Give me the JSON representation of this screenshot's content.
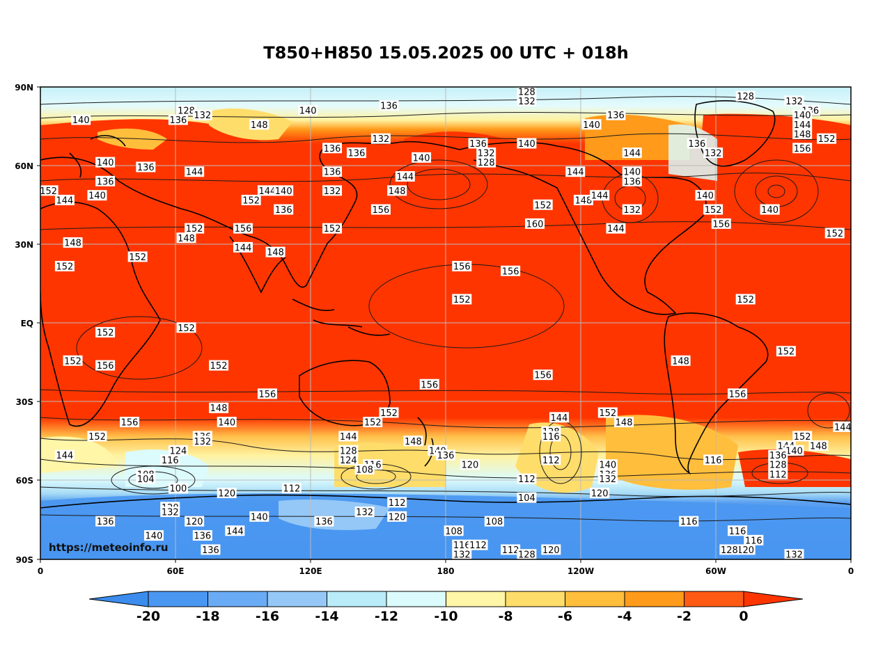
{
  "title": "T850+H850 15.05.2025 00 UTC + 018h",
  "watermark": "https://meteoinfo.ru",
  "lat_labels": [
    "90N",
    "60N",
    "30N",
    "EQ",
    "30S",
    "60S",
    "90S"
  ],
  "lon_labels": [
    "0",
    "60E",
    "120E",
    "180",
    "120W",
    "60W",
    "0"
  ],
  "colorbar": {
    "ticks": [
      "-20",
      "-18",
      "-16",
      "-14",
      "-12",
      "-10",
      "-8",
      "-6",
      "-4",
      "-2",
      "0"
    ],
    "colors": [
      "#3b8ced",
      "#4a97f1",
      "#6aabf5",
      "#95c8f7",
      "#b9ebf8",
      "#dcfbfd",
      "#fff6a8",
      "#ffdd6a",
      "#ffbe3c",
      "#ff9a1a",
      "#ff5a14",
      "#ff3500"
    ]
  },
  "colors": {
    "warm": "#ff3500",
    "orange": "#ff8a1a",
    "yellow": "#ffe27a",
    "light": "#fff9c6",
    "cyan": "#c5f0f8",
    "blue_light": "#8fc4f4",
    "blue": "#4592ec",
    "contour": "#1a1a1a",
    "grid": "#bbbbbb"
  },
  "height_labels": [
    {
      "t": "128",
      "lon": 0.6,
      "lat": 0.99
    },
    {
      "t": "128",
      "lon": 0.18,
      "lat": 0.95
    },
    {
      "t": "132",
      "lon": 0.2,
      "lat": 0.94
    },
    {
      "t": "136",
      "lon": 0.17,
      "lat": 0.93
    },
    {
      "t": "140",
      "lon": 0.05,
      "lat": 0.93
    },
    {
      "t": "140",
      "lon": 0.33,
      "lat": 0.95
    },
    {
      "t": "136",
      "lon": 0.43,
      "lat": 0.96
    },
    {
      "t": "132",
      "lon": 0.6,
      "lat": 0.97
    },
    {
      "t": "128",
      "lon": 0.87,
      "lat": 0.98
    },
    {
      "t": "132",
      "lon": 0.93,
      "lat": 0.97
    },
    {
      "t": "136",
      "lon": 0.95,
      "lat": 0.95
    },
    {
      "t": "136",
      "lon": 0.71,
      "lat": 0.94
    },
    {
      "t": "140",
      "lon": 0.68,
      "lat": 0.92
    },
    {
      "t": "148",
      "lon": 0.27,
      "lat": 0.92
    },
    {
      "t": "140",
      "lon": 0.94,
      "lat": 0.94
    },
    {
      "t": "144",
      "lon": 0.94,
      "lat": 0.92
    },
    {
      "t": "148",
      "lon": 0.94,
      "lat": 0.9
    },
    {
      "t": "152",
      "lon": 0.97,
      "lat": 0.89
    },
    {
      "t": "156",
      "lon": 0.94,
      "lat": 0.87
    },
    {
      "t": "136",
      "lon": 0.36,
      "lat": 0.87
    },
    {
      "t": "136",
      "lon": 0.39,
      "lat": 0.86
    },
    {
      "t": "132",
      "lon": 0.42,
      "lat": 0.89
    },
    {
      "t": "136",
      "lon": 0.54,
      "lat": 0.88
    },
    {
      "t": "132",
      "lon": 0.55,
      "lat": 0.86
    },
    {
      "t": "128",
      "lon": 0.55,
      "lat": 0.84
    },
    {
      "t": "140",
      "lon": 0.47,
      "lat": 0.85
    },
    {
      "t": "140",
      "lon": 0.6,
      "lat": 0.88
    },
    {
      "t": "144",
      "lon": 0.73,
      "lat": 0.86
    },
    {
      "t": "136",
      "lon": 0.81,
      "lat": 0.88
    },
    {
      "t": "132",
      "lon": 0.83,
      "lat": 0.86
    },
    {
      "t": "140",
      "lon": 0.08,
      "lat": 0.84
    },
    {
      "t": "136",
      "lon": 0.13,
      "lat": 0.83
    },
    {
      "t": "144",
      "lon": 0.19,
      "lat": 0.82
    },
    {
      "t": "136",
      "lon": 0.36,
      "lat": 0.82
    },
    {
      "t": "132",
      "lon": 0.36,
      "lat": 0.78
    },
    {
      "t": "144",
      "lon": 0.45,
      "lat": 0.81
    },
    {
      "t": "148",
      "lon": 0.44,
      "lat": 0.78
    },
    {
      "t": "144",
      "lon": 0.66,
      "lat": 0.82
    },
    {
      "t": "140",
      "lon": 0.73,
      "lat": 0.82
    },
    {
      "t": "136",
      "lon": 0.73,
      "lat": 0.8
    },
    {
      "t": "152",
      "lon": 0.01,
      "lat": 0.78
    },
    {
      "t": "136",
      "lon": 0.08,
      "lat": 0.8
    },
    {
      "t": "140",
      "lon": 0.07,
      "lat": 0.77
    },
    {
      "t": "144",
      "lon": 0.03,
      "lat": 0.76
    },
    {
      "t": "144",
      "lon": 0.28,
      "lat": 0.78
    },
    {
      "t": "140",
      "lon": 0.3,
      "lat": 0.78
    },
    {
      "t": "152",
      "lon": 0.26,
      "lat": 0.76
    },
    {
      "t": "136",
      "lon": 0.3,
      "lat": 0.74
    },
    {
      "t": "156",
      "lon": 0.42,
      "lat": 0.74
    },
    {
      "t": "148",
      "lon": 0.67,
      "lat": 0.76
    },
    {
      "t": "144",
      "lon": 0.69,
      "lat": 0.77
    },
    {
      "t": "152",
      "lon": 0.62,
      "lat": 0.75
    },
    {
      "t": "132",
      "lon": 0.73,
      "lat": 0.74
    },
    {
      "t": "140",
      "lon": 0.82,
      "lat": 0.77
    },
    {
      "t": "152",
      "lon": 0.83,
      "lat": 0.74
    },
    {
      "t": "140",
      "lon": 0.9,
      "lat": 0.74
    },
    {
      "t": "156",
      "lon": 0.84,
      "lat": 0.71
    },
    {
      "t": "160",
      "lon": 0.61,
      "lat": 0.71
    },
    {
      "t": "144",
      "lon": 0.71,
      "lat": 0.7
    },
    {
      "t": "152",
      "lon": 0.98,
      "lat": 0.69
    },
    {
      "t": "152",
      "lon": 0.19,
      "lat": 0.7
    },
    {
      "t": "148",
      "lon": 0.18,
      "lat": 0.68
    },
    {
      "t": "156",
      "lon": 0.25,
      "lat": 0.7
    },
    {
      "t": "144",
      "lon": 0.25,
      "lat": 0.66
    },
    {
      "t": "148",
      "lon": 0.29,
      "lat": 0.65
    },
    {
      "t": "152",
      "lon": 0.36,
      "lat": 0.7
    },
    {
      "t": "148",
      "lon": 0.04,
      "lat": 0.67
    },
    {
      "t": "152",
      "lon": 0.03,
      "lat": 0.62
    },
    {
      "t": "152",
      "lon": 0.12,
      "lat": 0.64
    },
    {
      "t": "156",
      "lon": 0.52,
      "lat": 0.62
    },
    {
      "t": "156",
      "lon": 0.58,
      "lat": 0.61
    },
    {
      "t": "152",
      "lon": 0.52,
      "lat": 0.55
    },
    {
      "t": "152",
      "lon": 0.87,
      "lat": 0.55
    },
    {
      "t": "152",
      "lon": 0.08,
      "lat": 0.48
    },
    {
      "t": "152",
      "lon": 0.18,
      "lat": 0.49
    },
    {
      "t": "152",
      "lon": 0.04,
      "lat": 0.42
    },
    {
      "t": "156",
      "lon": 0.08,
      "lat": 0.41
    },
    {
      "t": "152",
      "lon": 0.22,
      "lat": 0.41
    },
    {
      "t": "148",
      "lon": 0.79,
      "lat": 0.42
    },
    {
      "t": "152",
      "lon": 0.92,
      "lat": 0.44
    },
    {
      "t": "156",
      "lon": 0.62,
      "lat": 0.39
    },
    {
      "t": "156",
      "lon": 0.48,
      "lat": 0.37
    },
    {
      "t": "156",
      "lon": 0.28,
      "lat": 0.35
    },
    {
      "t": "156",
      "lon": 0.86,
      "lat": 0.35
    },
    {
      "t": "148",
      "lon": 0.22,
      "lat": 0.32
    },
    {
      "t": "140",
      "lon": 0.23,
      "lat": 0.29
    },
    {
      "t": "152",
      "lon": 0.43,
      "lat": 0.31
    },
    {
      "t": "152",
      "lon": 0.41,
      "lat": 0.29
    },
    {
      "t": "156",
      "lon": 0.11,
      "lat": 0.29
    },
    {
      "t": "152",
      "lon": 0.07,
      "lat": 0.26
    },
    {
      "t": "144",
      "lon": 0.03,
      "lat": 0.22
    },
    {
      "t": "136",
      "lon": 0.2,
      "lat": 0.26
    },
    {
      "t": "132",
      "lon": 0.2,
      "lat": 0.25
    },
    {
      "t": "124",
      "lon": 0.17,
      "lat": 0.23
    },
    {
      "t": "116",
      "lon": 0.16,
      "lat": 0.21
    },
    {
      "t": "108",
      "lon": 0.13,
      "lat": 0.18
    },
    {
      "t": "104",
      "lon": 0.13,
      "lat": 0.17
    },
    {
      "t": "100",
      "lon": 0.17,
      "lat": 0.15
    },
    {
      "t": "144",
      "lon": 0.38,
      "lat": 0.26
    },
    {
      "t": "128",
      "lon": 0.38,
      "lat": 0.23
    },
    {
      "t": "124",
      "lon": 0.38,
      "lat": 0.21
    },
    {
      "t": "116",
      "lon": 0.41,
      "lat": 0.2
    },
    {
      "t": "108",
      "lon": 0.4,
      "lat": 0.19
    },
    {
      "t": "148",
      "lon": 0.46,
      "lat": 0.25
    },
    {
      "t": "140",
      "lon": 0.49,
      "lat": 0.23
    },
    {
      "t": "136",
      "lon": 0.5,
      "lat": 0.22
    },
    {
      "t": "120",
      "lon": 0.53,
      "lat": 0.2
    },
    {
      "t": "144",
      "lon": 0.64,
      "lat": 0.3
    },
    {
      "t": "128",
      "lon": 0.63,
      "lat": 0.27
    },
    {
      "t": "116",
      "lon": 0.63,
      "lat": 0.26
    },
    {
      "t": "112",
      "lon": 0.63,
      "lat": 0.21
    },
    {
      "t": "112",
      "lon": 0.6,
      "lat": 0.17
    },
    {
      "t": "152",
      "lon": 0.7,
      "lat": 0.31
    },
    {
      "t": "148",
      "lon": 0.72,
      "lat": 0.29
    },
    {
      "t": "140",
      "lon": 0.7,
      "lat": 0.2
    },
    {
      "t": "136",
      "lon": 0.7,
      "lat": 0.18
    },
    {
      "t": "132",
      "lon": 0.7,
      "lat": 0.17
    },
    {
      "t": "120",
      "lon": 0.69,
      "lat": 0.14
    },
    {
      "t": "104",
      "lon": 0.6,
      "lat": 0.13
    },
    {
      "t": "116",
      "lon": 0.83,
      "lat": 0.21
    },
    {
      "t": "152",
      "lon": 0.94,
      "lat": 0.26
    },
    {
      "t": "144",
      "lon": 0.92,
      "lat": 0.24
    },
    {
      "t": "140",
      "lon": 0.93,
      "lat": 0.23
    },
    {
      "t": "136",
      "lon": 0.91,
      "lat": 0.22
    },
    {
      "t": "128",
      "lon": 0.91,
      "lat": 0.2
    },
    {
      "t": "112",
      "lon": 0.91,
      "lat": 0.18
    },
    {
      "t": "148",
      "lon": 0.96,
      "lat": 0.24
    },
    {
      "t": "144",
      "lon": 0.99,
      "lat": 0.28
    },
    {
      "t": "120",
      "lon": 0.23,
      "lat": 0.14
    },
    {
      "t": "112",
      "lon": 0.31,
      "lat": 0.15
    },
    {
      "t": "120",
      "lon": 0.16,
      "lat": 0.11
    },
    {
      "t": "132",
      "lon": 0.16,
      "lat": 0.1
    },
    {
      "t": "120",
      "lon": 0.19,
      "lat": 0.08
    },
    {
      "t": "140",
      "lon": 0.27,
      "lat": 0.09
    },
    {
      "t": "144",
      "lon": 0.24,
      "lat": 0.06
    },
    {
      "t": "136",
      "lon": 0.08,
      "lat": 0.08
    },
    {
      "t": "140",
      "lon": 0.14,
      "lat": 0.05
    },
    {
      "t": "136",
      "lon": 0.2,
      "lat": 0.05
    },
    {
      "t": "136",
      "lon": 0.21,
      "lat": 0.02
    },
    {
      "t": "136",
      "lon": 0.35,
      "lat": 0.08
    },
    {
      "t": "132",
      "lon": 0.4,
      "lat": 0.1
    },
    {
      "t": "112",
      "lon": 0.44,
      "lat": 0.12
    },
    {
      "t": "120",
      "lon": 0.44,
      "lat": 0.09
    },
    {
      "t": "108",
      "lon": 0.51,
      "lat": 0.06
    },
    {
      "t": "108",
      "lon": 0.56,
      "lat": 0.08
    },
    {
      "t": "116",
      "lon": 0.52,
      "lat": 0.03
    },
    {
      "t": "132",
      "lon": 0.52,
      "lat": 0.01
    },
    {
      "t": "112",
      "lon": 0.54,
      "lat": 0.03
    },
    {
      "t": "112",
      "lon": 0.58,
      "lat": 0.02
    },
    {
      "t": "128",
      "lon": 0.6,
      "lat": 0.01
    },
    {
      "t": "120",
      "lon": 0.63,
      "lat": 0.02
    },
    {
      "t": "116",
      "lon": 0.8,
      "lat": 0.08
    },
    {
      "t": "116",
      "lon": 0.86,
      "lat": 0.06
    },
    {
      "t": "116",
      "lon": 0.88,
      "lat": 0.04
    },
    {
      "t": "120",
      "lon": 0.87,
      "lat": 0.02
    },
    {
      "t": "128",
      "lon": 0.85,
      "lat": 0.02
    },
    {
      "t": "132",
      "lon": 0.93,
      "lat": 0.01
    }
  ]
}
